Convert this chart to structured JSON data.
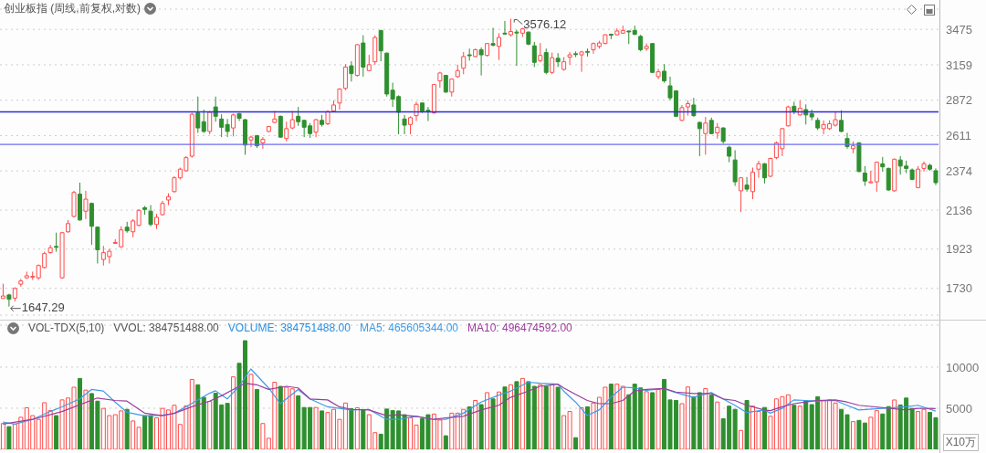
{
  "chart_data": [
    {
      "type": "candlestick",
      "title": "创业板指 (周线,前复权,对数)",
      "categories": [
        null,
        null,
        null,
        null,
        null,
        null,
        null,
        null,
        null,
        null,
        null,
        null,
        null,
        null,
        null,
        null,
        null,
        null,
        null,
        null,
        null,
        null,
        null,
        null,
        null,
        null,
        null,
        null,
        null,
        null,
        null,
        null,
        null,
        null,
        null,
        null,
        null,
        null,
        null,
        null,
        null,
        null,
        null,
        null,
        null,
        null,
        null,
        null,
        null,
        null,
        null,
        null,
        null,
        null,
        null,
        null,
        null,
        null,
        null,
        null,
        null,
        null,
        null,
        null,
        null,
        null,
        null,
        null,
        null,
        null,
        null,
        null,
        null,
        null,
        null,
        null,
        null,
        null,
        null,
        null,
        null,
        null,
        null,
        null,
        null,
        null,
        null,
        null,
        null,
        null,
        null,
        null,
        null,
        null,
        null,
        null,
        null,
        null,
        null,
        null,
        null,
        null,
        null,
        null,
        null,
        null,
        null,
        null,
        null,
        null,
        null,
        null,
        null,
        null,
        null,
        null,
        null,
        null,
        null,
        null,
        null,
        null,
        null,
        null,
        null,
        null,
        null,
        null,
        null,
        null,
        null,
        null,
        null,
        null,
        null,
        null,
        null,
        null,
        null,
        null,
        null,
        null,
        null,
        null,
        null,
        null,
        null,
        null,
        null,
        null,
        null,
        null,
        null,
        null,
        null,
        null,
        null,
        null,
        null
      ],
      "ohlc": [
        [
          1684,
          1752,
          1684,
          1695
        ],
        [
          1700,
          1705,
          1647.29,
          1680
        ],
        [
          1685,
          1735,
          1670,
          1730
        ],
        [
          1750,
          1775,
          1738,
          1765
        ],
        [
          1780,
          1810,
          1775,
          1790
        ],
        [
          1783,
          1810,
          1770,
          1787
        ],
        [
          1780,
          1845,
          1770,
          1840
        ],
        [
          1830,
          1910,
          1825,
          1900
        ],
        [
          1905,
          1945,
          1900,
          1930
        ],
        [
          1937,
          2010,
          1910,
          1934
        ],
        [
          1780,
          2015,
          1775,
          2010
        ],
        [
          2015,
          2080,
          2010,
          2060
        ],
        [
          2100,
          2250,
          2095,
          2240
        ],
        [
          2230,
          2300,
          2075,
          2080
        ],
        [
          2130,
          2250,
          2085,
          2200
        ],
        [
          2175,
          2180,
          1945,
          2045
        ],
        [
          2040,
          2045,
          1850,
          1920
        ],
        [
          1870,
          1940,
          1840,
          1905
        ],
        [
          1885,
          1925,
          1850,
          1912
        ],
        [
          1955,
          1975,
          1950,
          1958
        ],
        [
          1935,
          2045,
          1930,
          2025
        ],
        [
          2040,
          2070,
          2010,
          2020
        ],
        [
          2015,
          2085,
          1985,
          2075
        ],
        [
          2050,
          2140,
          2045,
          2135
        ],
        [
          2150,
          2160,
          2110,
          2140
        ],
        [
          2130,
          2165,
          2045,
          2055
        ],
        [
          2055,
          2115,
          2030,
          2095
        ],
        [
          2110,
          2190,
          2105,
          2175
        ],
        [
          2195,
          2235,
          2165,
          2215
        ],
        [
          2245,
          2340,
          2240,
          2330
        ],
        [
          2330,
          2395,
          2320,
          2385
        ],
        [
          2375,
          2470,
          2370,
          2460
        ],
        [
          2470,
          2775,
          2460,
          2765
        ],
        [
          2775,
          2900,
          2630,
          2665
        ],
        [
          2710,
          2800,
          2630,
          2640
        ],
        [
          2640,
          2790,
          2620,
          2780
        ],
        [
          2820,
          2900,
          2710,
          2750
        ],
        [
          2730,
          2765,
          2600,
          2670
        ],
        [
          2690,
          2730,
          2600,
          2640
        ],
        [
          2665,
          2770,
          2605,
          2760
        ],
        [
          2770,
          2775,
          2715,
          2735
        ],
        [
          2725,
          2730,
          2480,
          2545
        ],
        [
          2580,
          2610,
          2530,
          2600
        ],
        [
          2610,
          2615,
          2525,
          2540
        ],
        [
          2560,
          2600,
          2520,
          2585
        ],
        [
          2640,
          2680,
          2635,
          2675
        ],
        [
          2705,
          2790,
          2700,
          2730
        ],
        [
          2750,
          2755,
          2595,
          2600
        ],
        [
          2590,
          2710,
          2570,
          2660
        ],
        [
          2665,
          2790,
          2655,
          2725
        ],
        [
          2750,
          2820,
          2680,
          2710
        ],
        [
          2720,
          2725,
          2600,
          2670
        ],
        [
          2680,
          2700,
          2595,
          2625
        ],
        [
          2635,
          2730,
          2600,
          2725
        ],
        [
          2720,
          2760,
          2675,
          2690
        ],
        [
          2695,
          2795,
          2685,
          2785
        ],
        [
          2790,
          2870,
          2785,
          2835
        ],
        [
          2850,
          2965,
          2800,
          2960
        ],
        [
          2965,
          3165,
          2950,
          3140
        ],
        [
          3150,
          3190,
          3020,
          3085
        ],
        [
          3070,
          3340,
          3060,
          3335
        ],
        [
          3350,
          3420,
          3060,
          3140
        ],
        [
          3110,
          3245,
          3105,
          3160
        ],
        [
          3185,
          3420,
          3160,
          3400
        ],
        [
          3465,
          3470,
          3190,
          3280
        ],
        [
          3260,
          3265,
          2900,
          2920
        ],
        [
          2950,
          3010,
          2820,
          2880
        ],
        [
          2900,
          2910,
          2620,
          2780
        ],
        [
          2730,
          2760,
          2620,
          2685
        ],
        [
          2690,
          2750,
          2620,
          2740
        ],
        [
          2755,
          2860,
          2715,
          2840
        ],
        [
          2850,
          2855,
          2775,
          2790
        ],
        [
          2795,
          2820,
          2715,
          2790
        ],
        [
          2775,
          3000,
          2770,
          2995
        ],
        [
          3025,
          3100,
          2970,
          3090
        ],
        [
          3070,
          3075,
          2930,
          2935
        ],
        [
          2935,
          3045,
          2900,
          3040
        ],
        [
          3060,
          3160,
          3050,
          3110
        ],
        [
          3130,
          3270,
          3080,
          3230
        ],
        [
          3245,
          3300,
          3195,
          3240
        ],
        [
          3230,
          3300,
          3225,
          3290
        ],
        [
          3290,
          3310,
          3070,
          3245
        ],
        [
          3240,
          3350,
          3230,
          3345
        ],
        [
          3345,
          3490,
          3320,
          3330
        ],
        [
          3320,
          3440,
          3200,
          3400
        ],
        [
          3440,
          3555,
          3425,
          3435
        ],
        [
          3425,
          3576.12,
          3410,
          3455
        ],
        [
          3450,
          3470,
          3150,
          3445
        ],
        [
          3440,
          3490,
          3405,
          3480
        ],
        [
          3450,
          3455,
          3330,
          3340
        ],
        [
          3325,
          3360,
          3140,
          3180
        ],
        [
          3195,
          3350,
          3180,
          3240
        ],
        [
          3265,
          3300,
          3080,
          3095
        ],
        [
          3095,
          3265,
          3080,
          3220
        ],
        [
          3215,
          3260,
          3140,
          3185
        ],
        [
          3120,
          3225,
          3110,
          3185
        ],
        [
          3225,
          3270,
          3160,
          3245
        ],
        [
          3255,
          3275,
          3225,
          3250
        ],
        [
          3245,
          3280,
          3100,
          3270
        ],
        [
          3275,
          3300,
          3230,
          3270
        ],
        [
          3290,
          3355,
          3255,
          3345
        ],
        [
          3320,
          3370,
          3300,
          3350
        ],
        [
          3345,
          3430,
          3340,
          3425
        ],
        [
          3430,
          3435,
          3385,
          3425
        ],
        [
          3425,
          3485,
          3420,
          3460
        ],
        [
          3440,
          3510,
          3435,
          3465
        ],
        [
          3460,
          3465,
          3340,
          3455
        ],
        [
          3465,
          3510,
          3420,
          3430
        ],
        [
          3410,
          3425,
          3275,
          3290
        ],
        [
          3300,
          3345,
          3280,
          3320
        ],
        [
          3345,
          3350,
          3090,
          3095
        ],
        [
          3060,
          3125,
          3040,
          3100
        ],
        [
          3105,
          3165,
          3010,
          3025
        ],
        [
          2985,
          3060,
          2870,
          2890
        ],
        [
          2945,
          2950,
          2745,
          2750
        ],
        [
          2720,
          2835,
          2715,
          2815
        ],
        [
          2820,
          2870,
          2755,
          2845
        ],
        [
          2835,
          2890,
          2745,
          2755
        ],
        [
          2705,
          2710,
          2470,
          2660
        ],
        [
          2625,
          2745,
          2480,
          2700
        ],
        [
          2720,
          2740,
          2620,
          2625
        ],
        [
          2630,
          2700,
          2590,
          2670
        ],
        [
          2665,
          2670,
          2555,
          2570
        ],
        [
          2530,
          2540,
          2430,
          2470
        ],
        [
          2445,
          2510,
          2280,
          2305
        ],
        [
          2250,
          2335,
          2125,
          2330
        ],
        [
          2285,
          2335,
          2245,
          2260
        ],
        [
          2245,
          2395,
          2200,
          2365
        ],
        [
          2385,
          2440,
          2330,
          2420
        ],
        [
          2420,
          2425,
          2295,
          2330
        ],
        [
          2340,
          2460,
          2335,
          2455
        ],
        [
          2460,
          2570,
          2450,
          2560
        ],
        [
          2520,
          2665,
          2470,
          2660
        ],
        [
          2680,
          2830,
          2675,
          2820
        ],
        [
          2825,
          2860,
          2765,
          2790
        ],
        [
          2760,
          2870,
          2755,
          2810
        ],
        [
          2800,
          2840,
          2690,
          2760
        ],
        [
          2770,
          2800,
          2720,
          2745
        ],
        [
          2720,
          2740,
          2650,
          2665
        ],
        [
          2660,
          2720,
          2620,
          2690
        ],
        [
          2660,
          2720,
          2650,
          2695
        ],
        [
          2685,
          2780,
          2675,
          2725
        ],
        [
          2720,
          2795,
          2635,
          2640
        ],
        [
          2590,
          2630,
          2520,
          2535
        ],
        [
          2520,
          2570,
          2490,
          2540
        ],
        [
          2560,
          2565,
          2365,
          2370
        ],
        [
          2360,
          2405,
          2280,
          2310
        ],
        [
          2300,
          2375,
          2295,
          2305
        ],
        [
          2305,
          2435,
          2245,
          2430
        ],
        [
          2420,
          2465,
          2370,
          2400
        ],
        [
          2390,
          2395,
          2250,
          2255
        ],
        [
          2250,
          2455,
          2245,
          2450
        ],
        [
          2445,
          2470,
          2350,
          2405
        ],
        [
          2405,
          2440,
          2360,
          2390
        ],
        [
          2380,
          2390,
          2315,
          2320
        ],
        [
          2270,
          2405,
          2265,
          2385
        ],
        [
          2390,
          2435,
          2370,
          2420
        ],
        [
          2410,
          2420,
          2375,
          2385
        ],
        [
          2375,
          2390,
          2285,
          2300
        ]
      ],
      "log": true,
      "ylim": [
        1610,
        3670
      ],
      "yticks": [
        1730,
        1923,
        2136,
        2374,
        2611,
        2872,
        3159,
        3475
      ],
      "grid": "y",
      "tick_labels": "y",
      "ref_lines": [
        {
          "axis": "y",
          "value": 2783,
          "color": "#2b2bd9"
        },
        {
          "axis": "y",
          "value": 2549,
          "color": "#6a6af0"
        }
      ],
      "annotations": [
        "3576.12",
        "1647.29"
      ]
    },
    {
      "type": "bar",
      "title": "VOL-TDX(5,10)",
      "categories": [
        null,
        null,
        null,
        null,
        null,
        null,
        null,
        null,
        null,
        null,
        null,
        null,
        null,
        null,
        null,
        null,
        null,
        null,
        null,
        null,
        null,
        null,
        null,
        null,
        null,
        null,
        null,
        null,
        null,
        null,
        null,
        null,
        null,
        null,
        null,
        null,
        null,
        null,
        null,
        null,
        null,
        null,
        null,
        null,
        null,
        null,
        null,
        null,
        null,
        null,
        null,
        null,
        null,
        null,
        null,
        null,
        null,
        null,
        null,
        null,
        null,
        null,
        null,
        null,
        null,
        null,
        null,
        null,
        null,
        null,
        null,
        null,
        null,
        null,
        null,
        null,
        null,
        null,
        null,
        null,
        null,
        null,
        null,
        null,
        null,
        null,
        null,
        null,
        null,
        null,
        null,
        null,
        null,
        null,
        null,
        null,
        null,
        null,
        null,
        null,
        null,
        null,
        null,
        null,
        null,
        null,
        null,
        null,
        null,
        null,
        null,
        null,
        null,
        null,
        null,
        null,
        null,
        null,
        null,
        null,
        null,
        null,
        null,
        null,
        null,
        null,
        null,
        null,
        null,
        null,
        null,
        null,
        null,
        null,
        null,
        null,
        null,
        null,
        null,
        null,
        null,
        null,
        null,
        null,
        null,
        null,
        null,
        null,
        null,
        null,
        null,
        null,
        null,
        null,
        null,
        null,
        null,
        null,
        null
      ],
      "series": [
        {
          "type": "bar",
          "colors": [
            "#ff4a4a",
            "#2e8f2e",
            "#ff4a4a",
            "#ff4a4a",
            "#ff4a4a",
            "#ff4a4a",
            "#ff4a4a",
            "#ff4a4a",
            "#ff4a4a",
            "#2e8f2e",
            "#ff4a4a",
            "#ff4a4a",
            "#ff4a4a",
            "#2e8f2e",
            "#ff4a4a",
            "#2e8f2e",
            "#2e8f2e",
            "#ff4a4a",
            "#ff4a4a",
            "#ff4a4a",
            "#ff4a4a",
            "#2e8f2e",
            "#ff4a4a",
            "#ff4a4a",
            "#2e8f2e",
            "#2e8f2e",
            "#ff4a4a",
            "#ff4a4a",
            "#ff4a4a",
            "#ff4a4a",
            "#ff4a4a",
            "#ff4a4a",
            "#ff4a4a",
            "#2e8f2e",
            "#2e8f2e",
            "#ff4a4a",
            "#2e8f2e",
            "#2e8f2e",
            "#2e8f2e",
            "#ff4a4a",
            "#2e8f2e",
            "#2e8f2e",
            "#ff4a4a",
            "#2e8f2e",
            "#ff4a4a",
            "#ff4a4a",
            "#ff4a4a",
            "#2e8f2e",
            "#ff4a4a",
            "#ff4a4a",
            "#2e8f2e",
            "#2e8f2e",
            "#2e8f2e",
            "#ff4a4a",
            "#2e8f2e",
            "#ff4a4a",
            "#ff4a4a",
            "#ff4a4a",
            "#ff4a4a",
            "#2e8f2e",
            "#ff4a4a",
            "#2e8f2e",
            "#ff4a4a",
            "#ff4a4a",
            "#2e8f2e",
            "#2e8f2e",
            "#2e8f2e",
            "#2e8f2e",
            "#2e8f2e",
            "#ff4a4a",
            "#ff4a4a",
            "#2e8f2e",
            "#2e8f2e",
            "#ff4a4a",
            "#ff4a4a",
            "#2e8f2e",
            "#ff4a4a",
            "#ff4a4a",
            "#ff4a4a",
            "#2e8f2e",
            "#ff4a4a",
            "#2e8f2e",
            "#ff4a4a",
            "#2e8f2e",
            "#ff4a4a",
            "#2e8f2e",
            "#ff4a4a",
            "#2e8f2e",
            "#ff4a4a",
            "#2e8f2e",
            "#2e8f2e",
            "#ff4a4a",
            "#2e8f2e",
            "#ff4a4a",
            "#2e8f2e",
            "#ff4a4a",
            "#ff4a4a",
            "#2e8f2e",
            "#ff4a4a",
            "#2e8f2e",
            "#ff4a4a",
            "#ff4a4a",
            "#ff4a4a",
            "#2e8f2e",
            "#ff4a4a",
            "#ff4a4a",
            "#2e8f2e",
            "#2e8f2e",
            "#2e8f2e",
            "#ff4a4a",
            "#2e8f2e",
            "#ff4a4a",
            "#2e8f2e",
            "#2e8f2e",
            "#2e8f2e",
            "#ff4a4a",
            "#ff4a4a",
            "#2e8f2e",
            "#2e8f2e",
            "#ff4a4a",
            "#2e8f2e",
            "#ff4a4a",
            "#2e8f2e",
            "#2e8f2e",
            "#2e8f2e",
            "#ff4a4a",
            "#2e8f2e",
            "#ff4a4a",
            "#ff4a4a",
            "#2e8f2e",
            "#ff4a4a",
            "#ff4a4a",
            "#ff4a4a",
            "#ff4a4a",
            "#2e8f2e",
            "#ff4a4a",
            "#2e8f2e",
            "#2e8f2e",
            "#2e8f2e",
            "#ff4a4a",
            "#ff4a4a",
            "#ff4a4a",
            "#2e8f2e",
            "#2e8f2e",
            "#ff4a4a",
            "#2e8f2e",
            "#2e8f2e",
            "#ff4a4a",
            "#ff4a4a",
            "#2e8f2e",
            "#2e8f2e",
            "#ff4a4a",
            "#2e8f2e",
            "#2e8f2e",
            "#2e8f2e",
            "#ff4a4a",
            "#ff4a4a",
            "#2e8f2e",
            "#2e8f2e"
          ],
          "values": [
            3140,
            2760,
            3060,
            3900,
            5060,
            4100,
            3640,
            5670,
            4710,
            4100,
            6010,
            6240,
            7550,
            8620,
            7200,
            6780,
            5860,
            4980,
            4100,
            4210,
            4670,
            4860,
            3450,
            2680,
            4100,
            4100,
            3830,
            4980,
            4790,
            5360,
            3030,
            5290,
            8500,
            7850,
            6320,
            5820,
            6820,
            5400,
            5590,
            8810,
            10460,
            13210,
            9120,
            7280,
            3140,
            1340,
            8160,
            7660,
            7550,
            7350,
            6510,
            5090,
            5090,
            5090,
            4670,
            4480,
            4860,
            3640,
            5630,
            4940,
            5060,
            4790,
            4210,
            2030,
            1840,
            4900,
            4710,
            4670,
            4210,
            3830,
            2950,
            3720,
            4210,
            4290,
            3560,
            1650,
            4400,
            4400,
            4860,
            5170,
            5940,
            5440,
            6890,
            6130,
            6970,
            7580,
            7850,
            8230,
            8620,
            8230,
            7660,
            7850,
            7660,
            7850,
            7550,
            4100,
            4600,
            1420,
            5060,
            5170,
            5630,
            6320,
            7550,
            7930,
            7930,
            7660,
            6630,
            7930,
            7470,
            7010,
            6890,
            7280,
            8500,
            6010,
            5940,
            5550,
            7580,
            6400,
            6890,
            7390,
            6590,
            5750,
            3720,
            5250,
            4860,
            2300,
            5940,
            5250,
            4600,
            5090,
            4020,
            6130,
            6400,
            6630,
            5360,
            5250,
            5940,
            5440,
            6400,
            5940,
            6010,
            5630,
            4860,
            4210,
            3370,
            3520,
            3200,
            3900,
            4700,
            4300,
            5200,
            6000,
            5400,
            6240,
            4980,
            4600,
            4860,
            4500,
            3847.51
          ]
        },
        {
          "type": "line",
          "name": "MA5: 465605344.00",
          "color": "#3d9be9",
          "values": [
            3330,
            null,
            3060,
            null,
            null,
            3640,
            null,
            null,
            4600,
            null,
            5170,
            null,
            null,
            6130,
            null,
            7280,
            null,
            7090,
            null,
            5750,
            null,
            4520,
            null,
            null,
            4060,
            null,
            null,
            4140,
            null,
            4370,
            null,
            null,
            5590,
            null,
            null,
            6820,
            7120,
            null,
            6130,
            null,
            7660,
            null,
            9770,
            null,
            null,
            7470,
            null,
            5550,
            6130,
            null,
            7280,
            null,
            6130,
            null,
            null,
            5170,
            null,
            4980,
            null,
            4790,
            null,
            null,
            4860,
            null,
            null,
            3640,
            null,
            3640,
            null,
            null,
            4020,
            null,
            null,
            3640,
            null,
            3640,
            null,
            null,
            4400,
            null,
            null,
            5750,
            null,
            null,
            6590,
            null,
            7080,
            null,
            null,
            8160,
            null,
            8040,
            null,
            null,
            7930,
            7080,
            null,
            5750,
            null,
            4100,
            null,
            4790,
            null,
            6320,
            null,
            7550,
            null,
            7470,
            null,
            7160,
            null,
            null,
            7390,
            null,
            6900,
            null,
            null,
            6320,
            null,
            null,
            6900,
            null,
            6130,
            null,
            5360,
            null,
            4480,
            null,
            null,
            4790,
            4400,
            null,
            4980,
            null,
            6010,
            null,
            5940,
            null,
            5860,
            null,
            null,
            5940,
            null,
            5360,
            null,
            4790,
            null,
            null,
            null,
            null,
            null,
            null,
            null,
            5170,
            null,
            5360,
            null,
            null,
            4656.05
          ]
        },
        {
          "type": "line",
          "name": "MA10: 496474592.00",
          "color": "#9b3c9b",
          "values": [
            3060,
            null,
            null,
            null,
            null,
            3640,
            null,
            null,
            null,
            null,
            4600,
            null,
            null,
            null,
            null,
            null,
            6240,
            null,
            null,
            5940,
            null,
            5860,
            null,
            null,
            4400,
            null,
            null,
            4100,
            null,
            4370,
            null,
            null,
            5170,
            null,
            null,
            5860,
            null,
            6510,
            null,
            7280,
            null,
            8040,
            null,
            7850,
            null,
            7280,
            null,
            null,
            7660,
            null,
            7470,
            null,
            6130,
            null,
            null,
            6010,
            null,
            5170,
            null,
            4860,
            null,
            null,
            4790,
            null,
            null,
            4100,
            null,
            4210,
            null,
            null,
            4020,
            null,
            null,
            3640,
            null,
            3830,
            null,
            null,
            4020,
            null,
            null,
            4790,
            null,
            null,
            5360,
            null,
            6320,
            null,
            null,
            7080,
            null,
            7660,
            null,
            null,
            7930,
            7470,
            null,
            6700,
            null,
            5940,
            null,
            5550,
            null,
            5550,
            null,
            5940,
            null,
            7080,
            null,
            7280,
            null,
            null,
            7390,
            null,
            6970,
            null,
            null,
            6780,
            null,
            null,
            6780,
            null,
            6130,
            null,
            5940,
            null,
            5360,
            null,
            null,
            4790,
            4710,
            null,
            5170,
            null,
            5550,
            null,
            5750,
            null,
            5940,
            null,
            null,
            6010,
            null,
            5750,
            null,
            5360,
            null,
            null,
            null,
            null,
            null,
            null,
            null,
            4790,
            null,
            4980,
            null,
            null,
            4964.75
          ]
        }
      ],
      "ylim": [
        0,
        15100
      ],
      "yticks": [
        5000,
        10000
      ],
      "ylabel": "X10万",
      "grid": "y",
      "tick_labels": "y",
      "legend": "top left",
      "marker": "none",
      "annotations": [
        "VVOL: 384751488.00",
        "VOLUME: 384751488.00"
      ]
    }
  ]
}
